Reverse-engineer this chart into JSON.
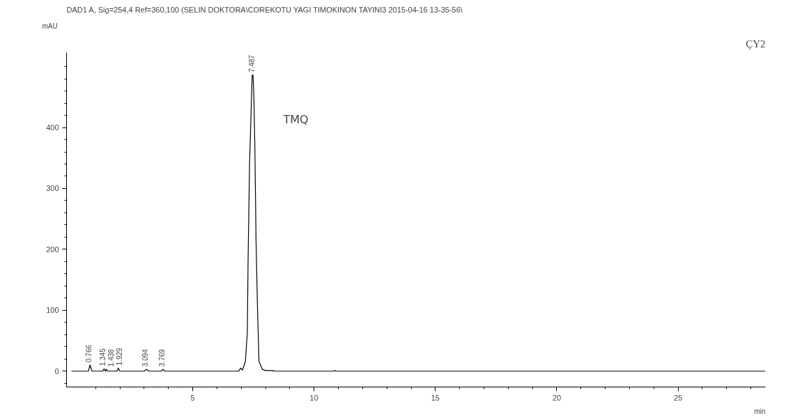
{
  "chart_data": {
    "type": "line",
    "title": "DAD1 A, Sig=254,4 Ref=360,100 (SELIN DOKTORA\\COREKOTU YAGI TIMOKINON TAYINI3 2015-04-16 13-35-56\\",
    "xlabel": "min",
    "ylabel": "mAU",
    "x": [
      0,
      0.7,
      0.766,
      0.85,
      1.3,
      1.345,
      1.4,
      1.438,
      1.5,
      1.88,
      1.929,
      2.0,
      3.0,
      3.094,
      3.2,
      3.7,
      3.769,
      3.85,
      6.9,
      6.97,
      7.05,
      7.17,
      7.25,
      7.28,
      7.34,
      7.45,
      7.487,
      7.52,
      7.56,
      7.61,
      7.67,
      7.73,
      7.87,
      8.0,
      8.3,
      8.35,
      10.8,
      10.85,
      10.9,
      28.6
    ],
    "series": [
      {
        "color": "#000000",
        "values": [
          0,
          0,
          10,
          0,
          0,
          4,
          0,
          3,
          0,
          0,
          5,
          0,
          0,
          3,
          0,
          0,
          3,
          0,
          0,
          5,
          2,
          16,
          64,
          179,
          338,
          486,
          486,
          450,
          368,
          212,
          101,
          16,
          3,
          1,
          1,
          0,
          0,
          1,
          0,
          0
        ]
      }
    ],
    "xlim": [
      -0.2,
      28.6
    ],
    "ylim": [
      -26,
      523
    ],
    "xticks": [
      5,
      10,
      15,
      20,
      25
    ],
    "yticks": [
      0,
      100,
      200,
      300,
      400
    ],
    "grid": false,
    "marker": "none",
    "line_style": "solid",
    "annotations": [
      {
        "text": "0.766",
        "x": 0.766,
        "y": 10
      },
      {
        "text": "1.345",
        "x": 1.345,
        "y": 4
      },
      {
        "text": "1.438",
        "x": 1.438,
        "y": 3
      },
      {
        "text": "1.929",
        "x": 1.929,
        "y": 5
      },
      {
        "text": "3.094",
        "x": 3.094,
        "y": 3
      },
      {
        "text": "3.769",
        "x": 3.769,
        "y": 3
      },
      {
        "text": "7.487",
        "x": 7.487,
        "y": 486
      },
      "TMQ",
      "ÇY2"
    ]
  }
}
